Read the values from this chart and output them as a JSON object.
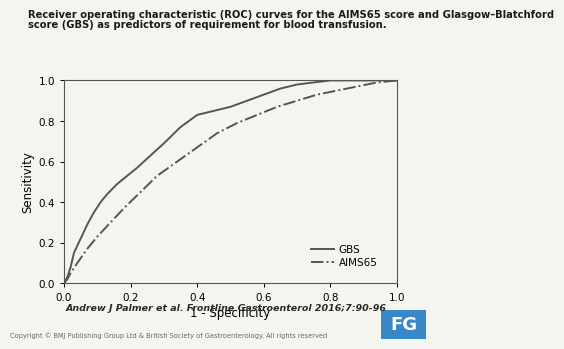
{
  "title_line1": "Receiver operating characteristic (ROC) curves for the AIMS65 score and Glasgow–Blatchford",
  "title_line2": "score (GBS) as predictors of requirement for blood transfusion.",
  "xlabel": "1 - Specificity",
  "ylabel": "Sensitivity",
  "xlim": [
    0.0,
    1.0
  ],
  "ylim": [
    0.0,
    1.0
  ],
  "xticks": [
    0.0,
    0.2,
    0.4,
    0.6,
    0.8,
    1.0
  ],
  "yticks": [
    0.0,
    0.2,
    0.4,
    0.6,
    0.8,
    1.0
  ],
  "citation": "Andrew J Palmer et al. Frontline Gastroenterol 2016;7:90-96",
  "copyright": "Copyright © BMJ Publishing Group Ltd & British Society of Gastroenterology. All rights reserved",
  "legend_labels": [
    "GBS",
    "AIMS65"
  ],
  "line_color": "#555555",
  "background_color": "#f5f5f0",
  "gbs_x": [
    0.0,
    0.01,
    0.02,
    0.03,
    0.05,
    0.07,
    0.09,
    0.11,
    0.13,
    0.16,
    0.19,
    0.22,
    0.26,
    0.3,
    0.35,
    0.4,
    0.45,
    0.5,
    0.55,
    0.6,
    0.65,
    0.7,
    0.75,
    0.8,
    0.85,
    0.9,
    1.0
  ],
  "gbs_y": [
    0.0,
    0.03,
    0.08,
    0.15,
    0.22,
    0.29,
    0.35,
    0.4,
    0.44,
    0.49,
    0.53,
    0.57,
    0.63,
    0.69,
    0.77,
    0.83,
    0.85,
    0.87,
    0.9,
    0.93,
    0.96,
    0.98,
    0.99,
    1.0,
    1.0,
    1.0,
    1.0
  ],
  "aims65_x": [
    0.0,
    0.01,
    0.02,
    0.04,
    0.07,
    0.1,
    0.14,
    0.18,
    0.23,
    0.28,
    0.34,
    0.4,
    0.46,
    0.52,
    0.58,
    0.64,
    0.7,
    0.76,
    0.82,
    0.88,
    0.94,
    1.0
  ],
  "aims65_y": [
    0.0,
    0.02,
    0.05,
    0.1,
    0.17,
    0.23,
    0.3,
    0.37,
    0.45,
    0.53,
    0.6,
    0.67,
    0.74,
    0.79,
    0.83,
    0.87,
    0.9,
    0.93,
    0.95,
    0.97,
    0.99,
    1.0
  ]
}
